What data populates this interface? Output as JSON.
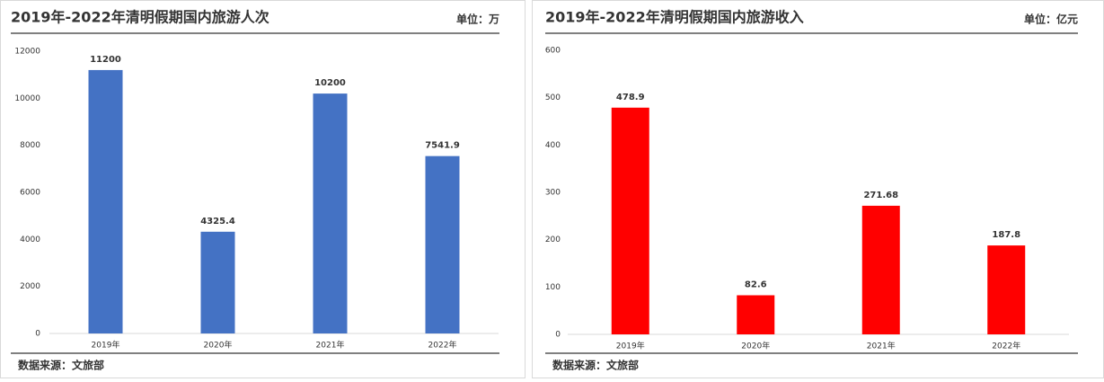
{
  "chart_data": [
    {
      "type": "bar",
      "title": "2019年-2022年清明假期国内旅游人次",
      "unit": "单位：万",
      "source": "数据来源：文旅部",
      "categories": [
        "2019年",
        "2020年",
        "2021年",
        "2022年"
      ],
      "values": [
        11200,
        4325.4,
        10200,
        7541.9
      ],
      "color": "#4472c4",
      "ylim": [
        0,
        12000
      ],
      "yticks": [
        0,
        2000,
        4000,
        6000,
        8000,
        10000,
        12000
      ]
    },
    {
      "type": "bar",
      "title": "2019年-2022年清明假期国内旅游收入",
      "unit": "单位：亿元",
      "source": "数据来源：文旅部",
      "categories": [
        "2019年",
        "2020年",
        "2021年",
        "2022年"
      ],
      "values": [
        478.9,
        82.6,
        271.68,
        187.8
      ],
      "color": "#ff0000",
      "ylim": [
        0,
        600
      ],
      "yticks": [
        0,
        100,
        200,
        300,
        400,
        500,
        600
      ]
    }
  ]
}
